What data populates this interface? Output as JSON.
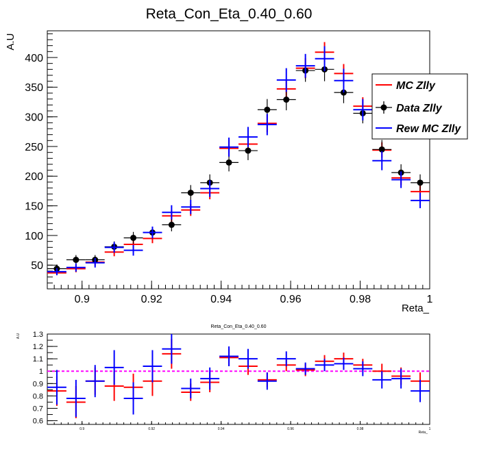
{
  "chart_data": [
    {
      "type": "scatter",
      "title": "Reta_Con_Eta_0.40_0.60",
      "xlabel": "Reta_",
      "ylabel": "A.U",
      "xlim": [
        0.89,
        1.0
      ],
      "ylim": [
        10,
        445
      ],
      "xticks": [
        0.9,
        0.92,
        0.94,
        0.96,
        0.98,
        1.0
      ],
      "xtick_labels": [
        "0.9",
        "0.92",
        "0.94",
        "0.96",
        "0.98",
        "1"
      ],
      "yticks": [
        50,
        100,
        150,
        200,
        250,
        300,
        350,
        400
      ],
      "bin_width": 0.0055,
      "x": [
        0.89275,
        0.89825,
        0.90375,
        0.90925,
        0.91475,
        0.92025,
        0.92575,
        0.93125,
        0.93675,
        0.94225,
        0.94775,
        0.95325,
        0.95875,
        0.96425,
        0.96975,
        0.97525,
        0.98075,
        0.98625,
        0.99175,
        0.99725
      ],
      "legend": {
        "position": "right",
        "entries": [
          "MC Zlly",
          "Data Zlly",
          "Rew MC Zlly"
        ]
      },
      "series": [
        {
          "name": "MC Zlly",
          "color": "#ff0000",
          "style": "cross",
          "values": [
            37,
            44,
            55,
            72,
            85,
            95,
            133,
            143,
            172,
            247,
            254,
            289,
            347,
            382,
            409,
            373,
            318,
            244,
            197,
            174
          ],
          "errors": [
            4,
            6,
            6,
            7,
            8,
            8,
            10,
            10,
            11,
            14,
            14,
            15,
            16,
            17,
            17,
            16,
            15,
            13,
            12,
            11
          ]
        },
        {
          "name": "Data Zlly",
          "color": "#000000",
          "style": "marker",
          "values": [
            44,
            59,
            59,
            81,
            96,
            105,
            118,
            172,
            189,
            223,
            243,
            312,
            329,
            378,
            380,
            341,
            306,
            245,
            206,
            189
          ],
          "errors": [
            7,
            8,
            8,
            9,
            10,
            10,
            11,
            13,
            14,
            15,
            16,
            18,
            18,
            19,
            20,
            18,
            17,
            16,
            14,
            14
          ]
        },
        {
          "name": "Rew MC Zlly",
          "color": "#0000ff",
          "style": "cross",
          "values": [
            39,
            46,
            54,
            80,
            75,
            105,
            139,
            148,
            179,
            249,
            266,
            287,
            362,
            386,
            398,
            361,
            312,
            226,
            194,
            159
          ],
          "errors": [
            6,
            7,
            8,
            9,
            9,
            10,
            12,
            12,
            14,
            16,
            17,
            18,
            20,
            20,
            21,
            20,
            18,
            16,
            14,
            13
          ]
        }
      ]
    },
    {
      "type": "scatter",
      "title": "Reta_Con_Eta_0.40_0.60",
      "xlabel": "Reta_",
      "ylabel": "A.U",
      "xlim": [
        0.89,
        1.0
      ],
      "ylim": [
        0.57,
        1.3
      ],
      "xticks": [
        0.9,
        0.92,
        0.94,
        0.96,
        0.98,
        1.0
      ],
      "xtick_labels": [
        "0.9",
        "0.92",
        "0.94",
        "0.96",
        "0.98",
        "1"
      ],
      "yticks": [
        0.6,
        0.7,
        0.8,
        0.9,
        1.0,
        1.1,
        1.2,
        1.3
      ],
      "ytick_labels": [
        "0.6",
        "0.7",
        "0.8",
        "0.9",
        "1",
        "1.1",
        "1.2",
        "1.3"
      ],
      "reference_line": {
        "y": 1.0,
        "color": "#ff00ff",
        "style": "dashed"
      },
      "series": [
        {
          "name": "MC Zlly",
          "color": "#ff0000",
          "values": [
            0.84,
            0.75,
            0.92,
            0.88,
            0.87,
            0.92,
            1.14,
            0.83,
            0.91,
            1.11,
            1.04,
            0.93,
            1.05,
            1.01,
            1.08,
            1.1,
            1.05,
            1.0,
            0.96,
            0.92
          ],
          "errors": [
            0.12,
            0.13,
            0.11,
            0.12,
            0.11,
            0.12,
            0.12,
            0.07,
            0.08,
            0.07,
            0.07,
            0.06,
            0.05,
            0.05,
            0.05,
            0.05,
            0.05,
            0.06,
            0.07,
            0.07
          ]
        },
        {
          "name": "Rew MC Zlly",
          "color": "#0000ff",
          "values": [
            0.87,
            0.78,
            0.92,
            1.03,
            0.78,
            1.04,
            1.18,
            0.86,
            0.94,
            1.12,
            1.1,
            0.92,
            1.1,
            1.02,
            1.05,
            1.06,
            1.02,
            0.93,
            0.94,
            0.84
          ],
          "errors": [
            0.14,
            0.15,
            0.13,
            0.14,
            0.13,
            0.13,
            0.12,
            0.08,
            0.09,
            0.08,
            0.08,
            0.07,
            0.06,
            0.05,
            0.05,
            0.05,
            0.06,
            0.07,
            0.08,
            0.09
          ]
        }
      ]
    }
  ]
}
